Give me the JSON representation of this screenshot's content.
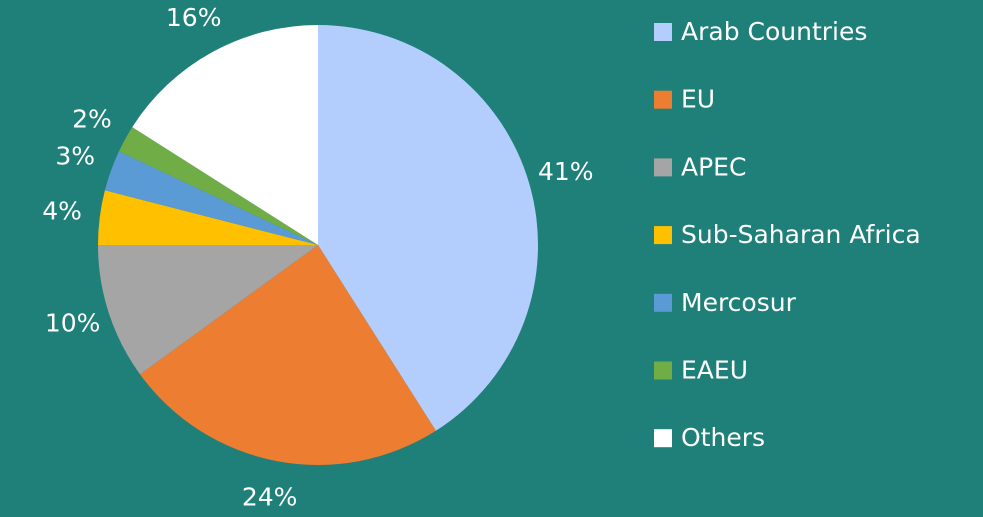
{
  "chart_data": {
    "type": "pie",
    "categories": [
      "Arab Countries",
      "EU",
      "APEC",
      "Sub-Saharan Africa",
      "Mercosur",
      "EAEU",
      "Others"
    ],
    "values": [
      41,
      24,
      10,
      4,
      3,
      2,
      16
    ],
    "value_labels": [
      "41%",
      "24%",
      "10%",
      "4%",
      "3%",
      "2%",
      "16%"
    ],
    "colors": [
      "#b3cefc",
      "#ed7d31",
      "#a5a5a5",
      "#ffc000",
      "#5b9bd5",
      "#70ad47",
      "#ffffff"
    ],
    "legend": "right"
  }
}
